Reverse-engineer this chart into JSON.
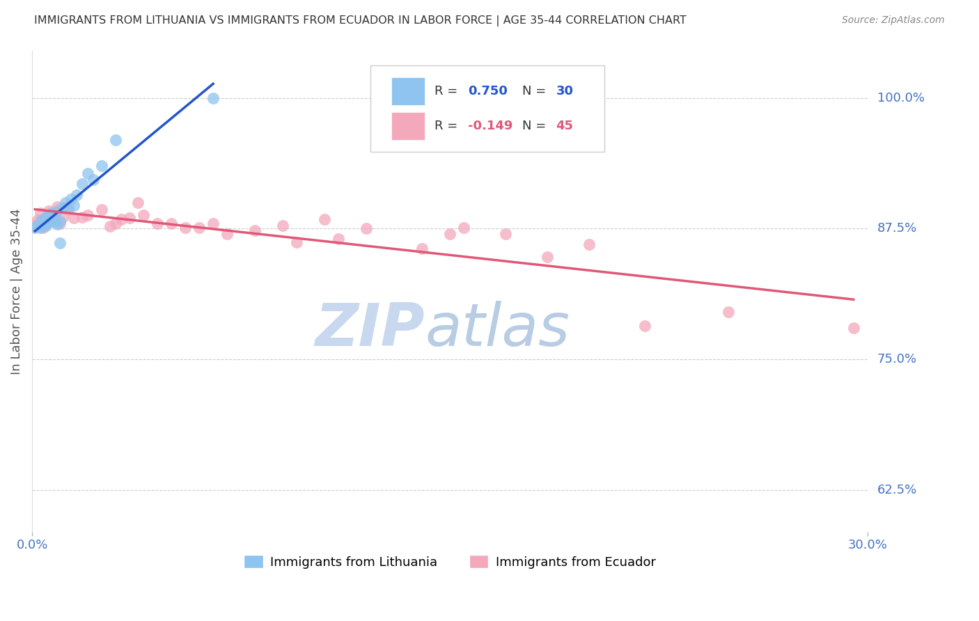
{
  "title": "IMMIGRANTS FROM LITHUANIA VS IMMIGRANTS FROM ECUADOR IN LABOR FORCE | AGE 35-44 CORRELATION CHART",
  "source": "Source: ZipAtlas.com",
  "ylabel": "In Labor Force | Age 35-44",
  "ytick_labels": [
    "100.0%",
    "87.5%",
    "75.0%",
    "62.5%"
  ],
  "ytick_values": [
    1.0,
    0.875,
    0.75,
    0.625
  ],
  "xlim": [
    0.0,
    0.3
  ],
  "ylim": [
    0.585,
    1.045
  ],
  "legend_R1": "0.750",
  "legend_N1": "30",
  "legend_R2": "-0.149",
  "legend_N2": "45",
  "lithuania_color": "#8ec4ef",
  "ecuador_color": "#f4a8bc",
  "line1_color": "#2255cc",
  "line2_color": "#e05878",
  "title_color": "#333333",
  "axis_label_color": "#4472c4",
  "watermark_zip_color": "#c8d8ee",
  "watermark_atlas_color": "#b8cce4",
  "background_color": "#ffffff",
  "grid_color": "#cccccc",
  "lithuania_x": [
    0.001,
    0.002,
    0.003,
    0.003,
    0.004,
    0.004,
    0.005,
    0.005,
    0.006,
    0.006,
    0.007,
    0.007,
    0.008,
    0.008,
    0.009,
    0.009,
    0.01,
    0.01,
    0.011,
    0.012,
    0.013,
    0.014,
    0.015,
    0.016,
    0.018,
    0.02,
    0.022,
    0.025,
    0.03,
    0.065
  ],
  "lithuania_y": [
    0.876,
    0.878,
    0.882,
    0.876,
    0.884,
    0.877,
    0.886,
    0.878,
    0.888,
    0.881,
    0.89,
    0.883,
    0.882,
    0.885,
    0.892,
    0.879,
    0.882,
    0.861,
    0.895,
    0.9,
    0.895,
    0.903,
    0.897,
    0.907,
    0.918,
    0.928,
    0.922,
    0.935,
    0.96,
    1.0
  ],
  "ecuador_x": [
    0.001,
    0.002,
    0.003,
    0.004,
    0.005,
    0.006,
    0.006,
    0.007,
    0.008,
    0.009,
    0.01,
    0.011,
    0.012,
    0.013,
    0.015,
    0.018,
    0.02,
    0.025,
    0.028,
    0.03,
    0.032,
    0.035,
    0.038,
    0.04,
    0.045,
    0.05,
    0.055,
    0.06,
    0.065,
    0.07,
    0.08,
    0.09,
    0.095,
    0.105,
    0.11,
    0.12,
    0.14,
    0.15,
    0.155,
    0.17,
    0.185,
    0.2,
    0.22,
    0.25,
    0.295
  ],
  "ecuador_y": [
    0.878,
    0.883,
    0.89,
    0.876,
    0.88,
    0.886,
    0.892,
    0.882,
    0.89,
    0.896,
    0.88,
    0.886,
    0.895,
    0.893,
    0.885,
    0.886,
    0.888,
    0.893,
    0.877,
    0.88,
    0.884,
    0.885,
    0.9,
    0.888,
    0.88,
    0.88,
    0.876,
    0.876,
    0.88,
    0.87,
    0.873,
    0.878,
    0.862,
    0.884,
    0.865,
    0.875,
    0.856,
    0.87,
    0.876,
    0.87,
    0.848,
    0.86,
    0.782,
    0.795,
    0.78
  ]
}
